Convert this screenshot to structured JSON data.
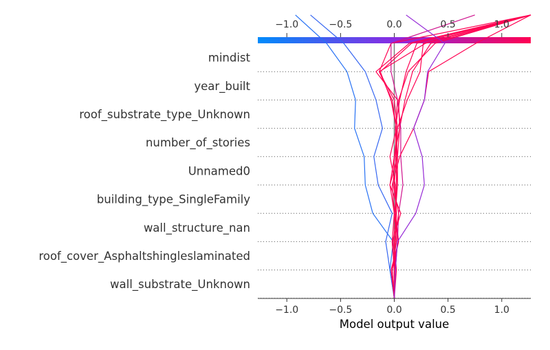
{
  "chart_data": {
    "type": "decision_plot",
    "xlabel": "Model output value",
    "xlim": [
      -1.27,
      1.27
    ],
    "xticks": [
      -1.0,
      -0.5,
      0.0,
      0.5,
      1.0
    ],
    "xtick_labels": [
      "−1.0",
      "−0.5",
      "0.0",
      "0.5",
      "1.0"
    ],
    "base_value": 0.0,
    "colormap": {
      "low": "#008bfb",
      "mid": "#8a2be2",
      "high": "#ff0052"
    },
    "features": [
      "mindist",
      "year_built",
      "roof_substrate_type_Unknown",
      "number_of_stories",
      "Unnamed0",
      "building_type_SingleFamily",
      "wall_structure_nan",
      "roof_cover_Asphaltshingleslaminated",
      "wall_substrate_Unknown"
    ],
    "series": [
      {
        "values": [
          0.0,
          -0.04,
          -0.01,
          -0.2,
          -0.27,
          -0.28,
          -0.37,
          -0.36,
          -0.44,
          -0.63,
          -0.92
        ]
      },
      {
        "values": [
          0.0,
          -0.04,
          -0.08,
          -0.02,
          -0.15,
          -0.19,
          -0.11,
          -0.17,
          -0.27,
          -0.47,
          -0.78
        ]
      },
      {
        "values": [
          0.0,
          -0.03,
          0.04,
          0.0,
          0.03,
          0.01,
          0.02,
          -0.03,
          -0.13,
          0.16,
          1.27
        ]
      },
      {
        "values": [
          0.0,
          -0.02,
          0.02,
          0.0,
          -0.04,
          0.0,
          0.03,
          0.0,
          -0.14,
          -0.03,
          1.27
        ]
      },
      {
        "values": [
          0.0,
          -0.02,
          0.04,
          0.01,
          0.03,
          0.03,
          0.05,
          0.1,
          0.17,
          0.34,
          1.27
        ]
      },
      {
        "values": [
          0.0,
          0.0,
          0.03,
          0.04,
          0.08,
          0.06,
          0.06,
          0.03,
          -0.03,
          -0.03,
          0.75
        ]
      },
      {
        "values": [
          0.0,
          0.0,
          0.01,
          0.02,
          0.0,
          0.02,
          0.03,
          0.12,
          0.24,
          0.27,
          1.27
        ]
      },
      {
        "values": [
          0.0,
          0.0,
          -0.02,
          0.0,
          -0.02,
          0.05,
          0.18,
          0.28,
          0.32,
          0.76,
          1.27
        ]
      },
      {
        "values": [
          0.0,
          0.01,
          -0.01,
          0.02,
          0.01,
          -0.04,
          0.02,
          -0.02,
          -0.14,
          0.29,
          1.27
        ]
      },
      {
        "values": [
          0.0,
          0.01,
          0.03,
          0.01,
          0.02,
          0.02,
          0.01,
          0.03,
          -0.17,
          0.14,
          1.27
        ]
      },
      {
        "values": [
          0.0,
          0.0,
          -0.02,
          0.06,
          -0.04,
          0.03,
          0.01,
          0.05,
          0.11,
          0.21,
          1.27
        ]
      },
      {
        "values": [
          0.0,
          0.02,
          0.0,
          0.04,
          -0.01,
          0.0,
          0.05,
          0.04,
          0.13,
          0.38,
          1.27
        ]
      },
      {
        "values": [
          0.0,
          0.01,
          0.03,
          0.2,
          0.28,
          0.26,
          0.18,
          0.28,
          0.31,
          0.47,
          0.11
        ]
      }
    ]
  }
}
